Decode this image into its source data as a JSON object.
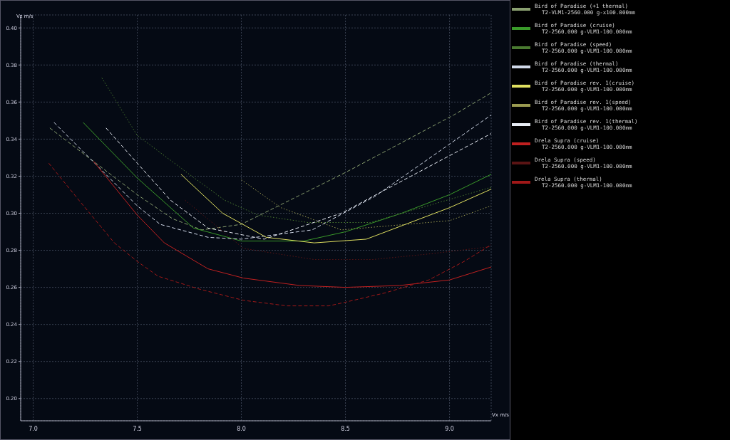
{
  "chart_data": {
    "type": "line",
    "xlabel": "Vx m/s",
    "ylabel": "Vz m/s",
    "xlim": [
      6.94,
      9.2
    ],
    "ylim": [
      0.188,
      0.407
    ],
    "xticks": [
      {
        "value": 7,
        "label": "7.0"
      },
      {
        "value": 7.5,
        "label": "7.5"
      },
      {
        "value": 8,
        "label": "8.0"
      },
      {
        "value": 8.5,
        "label": "8.5"
      },
      {
        "value": 9,
        "label": "9.0"
      }
    ],
    "yticks": [
      {
        "value": 0.2,
        "label": "0.20"
      },
      {
        "value": 0.22,
        "label": "0.22"
      },
      {
        "value": 0.24,
        "label": "0.24"
      },
      {
        "value": 0.26,
        "label": "0.26"
      },
      {
        "value": 0.28,
        "label": "0.28"
      },
      {
        "value": 0.3,
        "label": "0.30"
      },
      {
        "value": 0.32,
        "label": "0.32"
      },
      {
        "value": 0.34,
        "label": "0.34"
      },
      {
        "value": 0.36,
        "label": "0.36"
      },
      {
        "value": 0.38,
        "label": "0.38"
      },
      {
        "value": 0.4,
        "label": "0.40"
      }
    ],
    "grid": true,
    "legend": "right",
    "marker": "none",
    "series": [
      {
        "name": "Bird of Paradise (+1 thermal)\nT2-VLM1-2560.000 g-x100.000mm",
        "color": "#8aa070",
        "line_style": "dashed",
        "x": [
          7.08,
          7.5,
          7.67,
          7.81,
          8.0,
          8.5,
          9.02,
          9.2
        ],
        "values": [
          0.346,
          0.31,
          0.297,
          0.291,
          0.294,
          0.322,
          0.353,
          0.365
        ]
      },
      {
        "name": "Bird of Paradise (cruise)\nT2-2560.000 g-VLM1-100.000mm",
        "color": "#3a9a2a",
        "line_style": "solid",
        "x": [
          7.24,
          7.5,
          7.77,
          8.0,
          8.3,
          8.5,
          8.77,
          9.0,
          9.2
        ],
        "values": [
          0.349,
          0.319,
          0.292,
          0.285,
          0.285,
          0.29,
          0.3,
          0.31,
          0.321
        ]
      },
      {
        "name": "Bird of Paradise (speed)\nT2-2560.000 g-VLM1-100.000mm",
        "color": "#4a7a30",
        "line_style": "dotted",
        "x": [
          7.33,
          7.5,
          7.75,
          7.92,
          8.08,
          8.32,
          8.62,
          9.2
        ],
        "values": [
          0.373,
          0.342,
          0.321,
          0.307,
          0.299,
          0.295,
          0.295,
          0.314
        ]
      },
      {
        "name": "Bird of Paradise (thermal)\nT2-2560.000 g-VLM1-100.000mm",
        "color": "#d0d8e8",
        "line_style": "dashed",
        "x": [
          7.1,
          7.5,
          7.61,
          7.84,
          8.0,
          8.34,
          8.64,
          9.2
        ],
        "values": [
          0.349,
          0.304,
          0.294,
          0.287,
          0.286,
          0.291,
          0.309,
          0.353
        ]
      },
      {
        "name": "Bird of Paradise rev. 1(cruise)\nT2-2560.000 g-VLM1-100.000mm",
        "color": "#e0e060",
        "line_style": "solid",
        "x": [
          7.71,
          7.91,
          8.12,
          8.35,
          8.6,
          9.0,
          9.2
        ],
        "values": [
          0.321,
          0.3,
          0.287,
          0.284,
          0.286,
          0.303,
          0.313
        ]
      },
      {
        "name": "Bird of Paradise rev. 1(speed)\nT2-2560.000 g-VLM1-100.000mm",
        "color": "#9a9a50",
        "line_style": "dotted",
        "x": [
          8.0,
          8.19,
          8.48,
          9.0,
          9.2
        ],
        "values": [
          0.318,
          0.303,
          0.291,
          0.296,
          0.304
        ]
      },
      {
        "name": "Bird of Paradise rev. 1(thermal)\nT2-2560.000 g-VLM1-100.000mm",
        "color": "#e8ecf4",
        "line_style": "dashed",
        "x": [
          7.35,
          7.5,
          7.66,
          7.84,
          8.11,
          8.48,
          9.2
        ],
        "values": [
          0.346,
          0.327,
          0.307,
          0.292,
          0.286,
          0.3,
          0.343
        ]
      },
      {
        "name": "Drela Supra (cruise)\nT2-2560.000 g-VLM1-100.000mm",
        "color": "#c02020",
        "line_style": "solid",
        "x": [
          7.29,
          7.5,
          7.63,
          7.84,
          8.01,
          8.28,
          8.5,
          8.76,
          9.0,
          9.2
        ],
        "values": [
          0.328,
          0.299,
          0.284,
          0.27,
          0.265,
          0.261,
          0.26,
          0.261,
          0.264,
          0.271
        ]
      },
      {
        "name": "Drela Supra (speed)\nT2-2560.000 g-VLM1-100.000mm",
        "color": "#5a1414",
        "line_style": "dotted",
        "x": [
          7.73,
          8.01,
          8.35,
          8.63,
          8.9,
          9.2
        ],
        "values": [
          0.307,
          0.281,
          0.275,
          0.275,
          0.278,
          0.282
        ]
      },
      {
        "name": "Drela Supra (thermal)\nT2-2560.000 g-VLM1-100.000mm",
        "color": "#a01818",
        "line_style": "dashed",
        "x": [
          7.075,
          7.22,
          7.39,
          7.5,
          7.6,
          7.8,
          8.01,
          8.22,
          8.42,
          8.5,
          8.69,
          8.9,
          9.07,
          9.2
        ],
        "values": [
          0.327,
          0.307,
          0.284,
          0.274,
          0.266,
          0.259,
          0.253,
          0.25,
          0.25,
          0.252,
          0.257,
          0.264,
          0.274,
          0.283
        ]
      }
    ]
  }
}
